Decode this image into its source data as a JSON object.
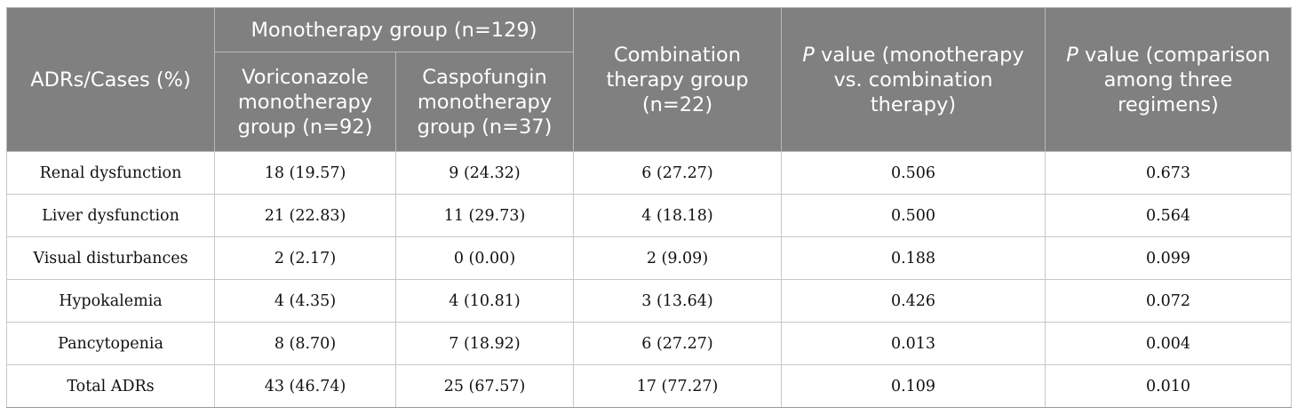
{
  "header": {
    "row_label": "ADRs/Cases (%)",
    "monotherapy_group": "Monotherapy group (n=129)",
    "voriconazole": "Voriconazole monotherapy group (n=92)",
    "caspofungin": "Caspofungin monotherapy group (n=37)",
    "combination": "Combination therapy group (n=22)",
    "p_mono_vs_combo_italic": "P",
    "p_mono_vs_combo_rest": " value (monotherapy vs. combination therapy)",
    "p_three_italic": "P",
    "p_three_rest": " value (comparison among three regimens)"
  },
  "rows": [
    {
      "label": "Renal dysfunction",
      "vori": "18 (19.57)",
      "caspo": "9 (24.32)",
      "combo": "6 (27.27)",
      "p1": "0.506",
      "p2": "0.673"
    },
    {
      "label": "Liver dysfunction",
      "vori": "21 (22.83)",
      "caspo": "11 (29.73)",
      "combo": "4 (18.18)",
      "p1": "0.500",
      "p2": "0.564"
    },
    {
      "label": "Visual disturbances",
      "vori": "2 (2.17)",
      "caspo": "0 (0.00)",
      "combo": "2 (9.09)",
      "p1": "0.188",
      "p2": "0.099"
    },
    {
      "label": "Hypokalemia",
      "vori": "4 (4.35)",
      "caspo": "4 (10.81)",
      "combo": "3 (13.64)",
      "p1": "0.426",
      "p2": "0.072"
    },
    {
      "label": "Pancytopenia",
      "vori": "8 (8.70)",
      "caspo": "7 (18.92)",
      "combo": "6 (27.27)",
      "p1": "0.013",
      "p2": "0.004"
    },
    {
      "label": "Total ADRs",
      "vori": "43 (46.74)",
      "caspo": "25 (67.57)",
      "combo": "17 (77.27)",
      "p1": "0.109",
      "p2": "0.010"
    }
  ],
  "colors": {
    "header_bg": "#808080",
    "header_text": "#ffffff",
    "body_text": "#111111"
  }
}
